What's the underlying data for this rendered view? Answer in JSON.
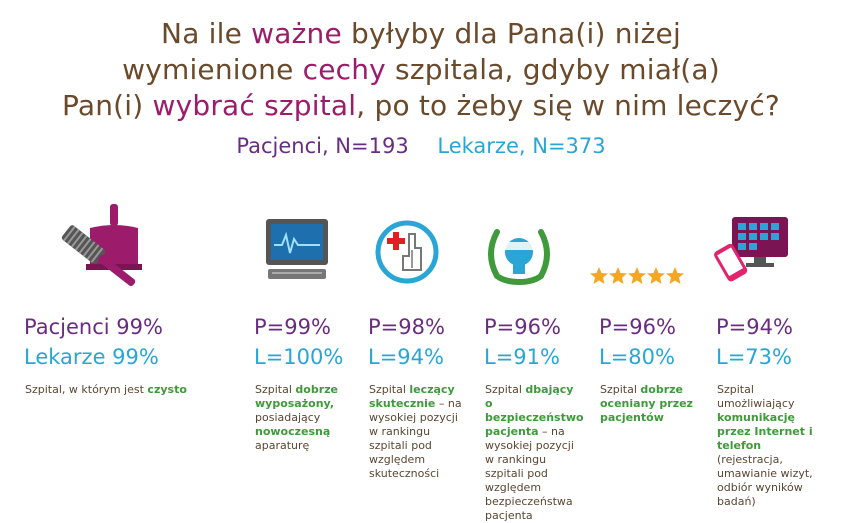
{
  "title": {
    "line1": {
      "a": "Na ile ",
      "b": "ważne",
      "c": " byłyby dla Pana(i) niżej"
    },
    "line2": {
      "a": "wymienione ",
      "b": "cechy",
      "c": " szpitala, gdyby miał(a)"
    },
    "line3": {
      "a": "Pan(i) ",
      "b": "wybrać szpital",
      "c": ", po to żeby się w nim leczyć?"
    }
  },
  "legend": {
    "patients": "Pacjenci, N=193",
    "doctors": "Lekarze, N=373"
  },
  "colors": {
    "patients": "#6a2c82",
    "doctors": "#29a6d6",
    "title": "#6b4a2b",
    "highlight": "#9c1c6b",
    "green": "#3e9a3a",
    "stars": "#f5a623"
  },
  "items": [
    {
      "icon": "cleaning-icon",
      "p": "Pacjenci 99%",
      "l": "Lekarze 99%",
      "desc": [
        {
          "t": "Szpital, w którym jest "
        },
        {
          "t": "czysto",
          "g": true
        }
      ]
    },
    {
      "icon": "computer-icon",
      "p": "P=99%",
      "l": "L=100%",
      "desc": [
        {
          "t": "Szpital "
        },
        {
          "t": "dobrze wyposażony,",
          "g": true
        },
        {
          "t": " posiadający "
        },
        {
          "t": "nowoczesną",
          "g": true
        },
        {
          "t": " aparaturę"
        }
      ]
    },
    {
      "icon": "medical-hand-icon",
      "p": "P=98%",
      "l": "L=94%",
      "desc": [
        {
          "t": "Szpital "
        },
        {
          "t": "leczący skutecznie",
          "g": true
        },
        {
          "t": " – na wysokiej pozycji w rankingu szpitali pod względem skuteczności"
        }
      ]
    },
    {
      "icon": "patient-safety-icon",
      "p": "P=96%",
      "l": "L=91%",
      "desc": [
        {
          "t": "Szpital "
        },
        {
          "t": "dbający o bezpieczeństwo pacjenta",
          "g": true
        },
        {
          "t": " – na wysokiej pozycji w rankingu szpitali pod względem bezpieczeństwa pacjenta"
        }
      ]
    },
    {
      "icon": "five-stars-icon",
      "p": "P=96%",
      "l": "L=80%",
      "desc": [
        {
          "t": "Szpital "
        },
        {
          "t": "dobrze oceniany przez pacjentów",
          "g": true
        }
      ]
    },
    {
      "icon": "internet-phone-icon",
      "p": "P=94%",
      "l": "L=73%",
      "desc": [
        {
          "t": "Szpital umożliwiający "
        },
        {
          "t": "komunikację przez Internet i telefon",
          "g": true
        },
        {
          "t": " (rejestracja, umawianie wizyt, odbiór wyników badań)"
        }
      ]
    }
  ]
}
